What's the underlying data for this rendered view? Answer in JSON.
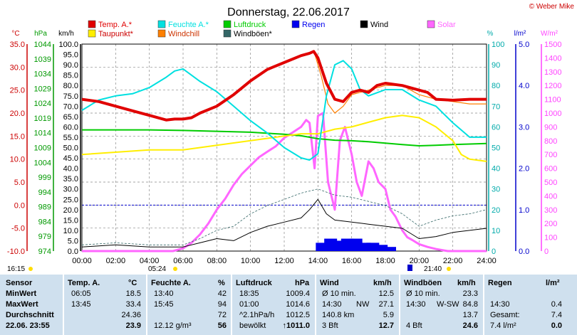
{
  "title": "Donnerstag, 22.06.2017",
  "credit": "© Weber Mike",
  "axis_units": {
    "temp": "°C",
    "pressure": "hPa",
    "wind": "km/h",
    "humidity": "%",
    "rain": "l/m²",
    "solar": "W/m²"
  },
  "legend": [
    {
      "label": "Temp. A.*",
      "color": "#e00000"
    },
    {
      "label": "Feuchte A.*",
      "color": "#00e0e0"
    },
    {
      "label": "Luftdruck",
      "color": "#00cc00"
    },
    {
      "label": "Regen",
      "color": "#0000ee"
    },
    {
      "label": "Wind",
      "color": "#000000"
    },
    {
      "label": "Solar",
      "color": "#ff66ff"
    },
    {
      "label": "Taupunkt*",
      "color": "#ffee00"
    },
    {
      "label": "Windchill",
      "color": "#ff7f00"
    },
    {
      "label": "Windböen*",
      "color": "#336666"
    }
  ],
  "markers": {
    "left_time": "16:15",
    "sunrise": "05:24",
    "sunset": "21:40"
  },
  "chart_data": {
    "type": "line",
    "title": "Donnerstag, 22.06.2017",
    "x_ticks": [
      "00:00",
      "02:00",
      "04:00",
      "06:00",
      "08:00",
      "10:00",
      "12:00",
      "14:00",
      "16:00",
      "18:00",
      "20:00",
      "22:00",
      "24:00"
    ],
    "axes": {
      "temp": {
        "range": [
          -10,
          35
        ],
        "ticks": [
          "35.0",
          "30.0",
          "25.0",
          "20.0",
          "15.0",
          "10.0",
          "5.0",
          "0.0",
          "-5.0",
          "-10.0"
        ]
      },
      "pressure": {
        "range": [
          974,
          1044
        ],
        "ticks": [
          "1044",
          "1039",
          "1034",
          "1029",
          "1024",
          "1019",
          "1014",
          "1009",
          "1004",
          "999",
          "994",
          "989",
          "984",
          "979",
          "974"
        ]
      },
      "wind": {
        "range": [
          0,
          100
        ],
        "ticks": [
          "100.0",
          "95.0",
          "90.0",
          "85.0",
          "80.0",
          "75.0",
          "70.0",
          "65.0",
          "60.0",
          "55.0",
          "50.0",
          "45.0",
          "40.0",
          "35.0",
          "30.0",
          "25.0",
          "20.0",
          "15.0",
          "10.0",
          "5.0",
          "0.0"
        ]
      },
      "humidity": {
        "range": [
          0,
          100
        ],
        "ticks": [
          "100",
          "90",
          "80",
          "70",
          "60",
          "50",
          "40",
          "30",
          "20",
          "10",
          "0"
        ]
      },
      "rain": {
        "range": [
          0,
          5
        ],
        "ticks": [
          "5.0",
          "4.0",
          "3.0",
          "2.0",
          "1.0",
          "0.0"
        ]
      },
      "solar": {
        "range": [
          0,
          1500
        ],
        "ticks": [
          "1500",
          "1400",
          "1300",
          "1200",
          "1100",
          "1000",
          "900",
          "800",
          "700",
          "600",
          "500",
          "400",
          "300",
          "200",
          "100",
          "0"
        ]
      }
    },
    "series": [
      {
        "name": "Temp. A.*",
        "axis": "temp",
        "x": [
          0,
          1,
          2,
          3,
          4,
          5,
          5.5,
          6,
          6.5,
          7,
          8,
          9,
          10,
          11,
          12,
          13,
          13.5,
          13.75,
          14,
          14.5,
          15,
          15.5,
          16,
          16.5,
          17,
          17.5,
          18,
          19,
          20,
          20.5,
          21,
          22,
          23,
          24
        ],
        "y": [
          23,
          22.5,
          21.5,
          20.5,
          19.5,
          18.5,
          18.7,
          18.7,
          19,
          20,
          21.5,
          24,
          27,
          29.5,
          31,
          32.5,
          33,
          33.4,
          32,
          26.5,
          23,
          22.5,
          24.5,
          25,
          24.5,
          26,
          26.5,
          26,
          25,
          24.5,
          23,
          22.8,
          23,
          23
        ]
      },
      {
        "name": "Taupunkt*",
        "axis": "temp",
        "x": [
          0,
          2,
          4,
          6,
          8,
          10,
          12,
          13,
          14,
          15,
          16,
          17,
          18,
          19,
          20,
          21,
          22,
          22.5,
          23,
          24
        ],
        "y": [
          11,
          11.5,
          12,
          12,
          13,
          14,
          15,
          15.5,
          15.5,
          16.5,
          17,
          18,
          19,
          19.5,
          19,
          17,
          14,
          11,
          10,
          9.5
        ]
      },
      {
        "name": "Windchill",
        "axis": "temp",
        "x": [
          13.8,
          14.2,
          14.6,
          15,
          15.5,
          16,
          17,
          18,
          19,
          20,
          21,
          22,
          23,
          24
        ],
        "y": [
          33,
          28,
          22,
          20,
          21.5,
          24,
          25,
          26,
          26,
          24,
          23,
          22.5,
          22,
          22
        ]
      },
      {
        "name": "Feuchte A.*",
        "axis": "humidity",
        "x": [
          0,
          1,
          2,
          3,
          4,
          5,
          5.5,
          6,
          7,
          8,
          9,
          10,
          11,
          12,
          13,
          13.5,
          14,
          14.5,
          15,
          15.5,
          16,
          16.5,
          17,
          18,
          19,
          20,
          21,
          22,
          23,
          24
        ],
        "y": [
          68,
          73,
          75,
          76,
          79,
          84,
          87,
          88,
          82,
          77,
          70,
          63,
          57,
          50,
          45,
          44,
          47,
          75,
          90,
          92,
          88,
          78,
          75,
          78,
          78,
          73,
          70,
          62,
          55,
          55
        ]
      },
      {
        "name": "Luftdruck",
        "axis": "pressure",
        "x": [
          0,
          2,
          4,
          6,
          8,
          10,
          12,
          13,
          14,
          15,
          16,
          17,
          18,
          19,
          20,
          21,
          22,
          23,
          24
        ],
        "y": [
          1015,
          1015,
          1015,
          1014.8,
          1014.5,
          1014.2,
          1013.5,
          1013,
          1012,
          1011.5,
          1011.3,
          1011,
          1010.5,
          1010,
          1009.6,
          1009.8,
          1010,
          1010.2,
          1010.4
        ]
      },
      {
        "name": "Wind",
        "axis": "wind",
        "x": [
          0,
          2,
          4,
          6,
          7,
          8,
          9,
          10,
          11,
          12,
          13,
          13.5,
          14,
          14.5,
          15,
          16,
          17,
          18,
          19,
          20,
          21,
          22,
          23,
          24
        ],
        "y": [
          2,
          3,
          2,
          2,
          4,
          6,
          5,
          9,
          12,
          14,
          16,
          20,
          25,
          18,
          15,
          14,
          13,
          12,
          11,
          6,
          7,
          9,
          10,
          11
        ]
      },
      {
        "name": "Windböen*",
        "axis": "wind",
        "x": [
          0,
          2,
          4,
          6,
          7,
          8,
          9,
          10,
          11,
          12,
          13,
          14,
          15,
          16,
          17,
          18,
          19,
          20,
          21,
          22,
          23,
          24
        ],
        "y": [
          3,
          4,
          3,
          3,
          6,
          10,
          12,
          18,
          22,
          25,
          28,
          30,
          27,
          26,
          24,
          22,
          18,
          12,
          15,
          17,
          18,
          20
        ]
      },
      {
        "name": "Solar",
        "axis": "solar",
        "x": [
          0,
          5.4,
          6,
          6.5,
          7,
          7.5,
          8,
          8.5,
          9,
          9.5,
          10,
          10.5,
          11,
          11.5,
          12,
          12.5,
          13,
          13.3,
          13.5,
          13.8,
          14,
          14.3,
          14.6,
          15,
          15.3,
          15.6,
          16,
          16.3,
          16.6,
          17,
          17.3,
          17.6,
          18,
          18.3,
          18.6,
          19,
          19.3,
          19.6,
          20,
          20.5,
          21,
          21.7,
          24
        ],
        "y": [
          0,
          0,
          20,
          60,
          120,
          200,
          300,
          380,
          480,
          560,
          620,
          680,
          720,
          760,
          820,
          860,
          900,
          950,
          930,
          600,
          980,
          1000,
          500,
          300,
          800,
          900,
          700,
          500,
          400,
          650,
          600,
          500,
          450,
          300,
          250,
          150,
          100,
          80,
          50,
          30,
          15,
          0,
          0
        ]
      },
      {
        "name": "Regen",
        "axis": "rain",
        "x": [
          14,
          14.5,
          15,
          15.5,
          16,
          16.5,
          17,
          17.5,
          18
        ],
        "y": [
          0.2,
          0.3,
          0.25,
          0.3,
          0.3,
          0.2,
          0.2,
          0.15,
          0.1
        ]
      }
    ]
  },
  "stats": {
    "headers": [
      "Sensor",
      "Temp. A.",
      "°C",
      "Feuchte A.",
      "%",
      "Luftdruck",
      "hPa",
      "Wind",
      "km/h",
      "Windböen",
      "km/h",
      "Regen",
      "l/m²"
    ],
    "rows": [
      {
        "label": "MinWert",
        "t_time": "06:05",
        "t_val": "18.5",
        "h_time": "13:40",
        "h_val": "42",
        "p_time": "18:35",
        "p_val": "1009.4",
        "w_label": "Ø 10 min.",
        "w_val": "12.5",
        "g_label": "Ø 10 min.",
        "g_val": "23.3",
        "r_label": "",
        "r_val": ""
      },
      {
        "label": "MaxWert",
        "t_time": "13:45",
        "t_val": "33.4",
        "h_time": "15:45",
        "h_val": "94",
        "p_time": "01:00",
        "p_val": "1014.6",
        "w_label": "14:30",
        "w_dir": "NW",
        "w_val": "27.1",
        "g_label": "14:30",
        "g_dir": "W-SW",
        "g_val": "84.8",
        "r_label": "14:30",
        "r_val": "0.4"
      },
      {
        "label": "Durchschnitt",
        "t_time": "",
        "t_val": "24.36",
        "h_time": "",
        "h_val": "72",
        "p_time": "^2.1hPa/h",
        "p_val": "1012.5",
        "w_label": "140.8 km",
        "w_val": "5.9",
        "g_label": "",
        "g_val": "13.7",
        "r_label": "Gesamt:",
        "r_val": "7.4"
      },
      {
        "label": "22.06. 23:55",
        "t_time": "",
        "t_val": "23.9",
        "h_time": "12.12 g/m³",
        "h_val": "56",
        "p_time": "bewölkt",
        "p_val": "↑1011.0",
        "w_label": "3 Bft",
        "w_val": "12.7",
        "g_label": "4 Bft",
        "g_val": "24.6",
        "r_label": "7.4 l/m²",
        "r_val": "0.0"
      }
    ]
  }
}
